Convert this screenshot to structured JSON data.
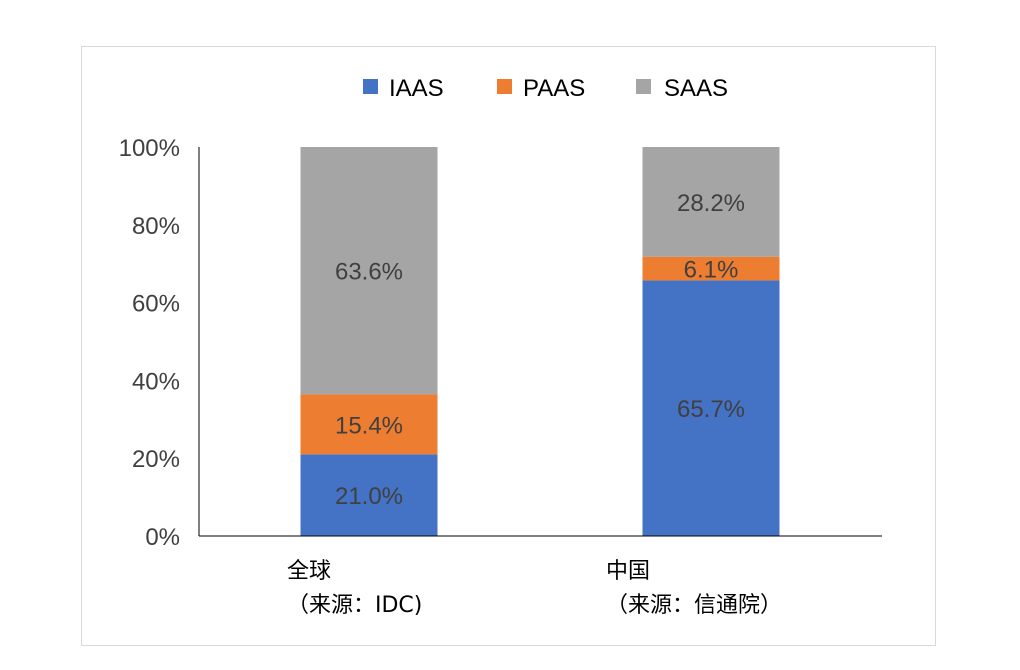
{
  "chart_data": {
    "type": "bar",
    "stacked": true,
    "percent": true,
    "categories": [
      "全球",
      "中国"
    ],
    "category_sublabels": [
      "（来源：IDC)",
      "（来源：信通院）"
    ],
    "series": [
      {
        "name": "IAAS",
        "color": "#4472C4",
        "values": [
          21.0,
          65.7
        ],
        "labels": [
          "21.0%",
          "65.7%"
        ]
      },
      {
        "name": "PAAS",
        "color": "#ED7D31",
        "values": [
          15.4,
          6.1
        ],
        "labels": [
          "15.4%",
          "6.1%"
        ]
      },
      {
        "name": "SAAS",
        "color": "#A5A5A5",
        "values": [
          63.6,
          28.2
        ],
        "labels": [
          "63.6%",
          "28.2%"
        ]
      }
    ],
    "ylim": [
      0,
      100
    ],
    "yticks": [
      "0%",
      "20%",
      "40%",
      "60%",
      "80%",
      "100%"
    ],
    "grid": false,
    "legend": "top"
  }
}
